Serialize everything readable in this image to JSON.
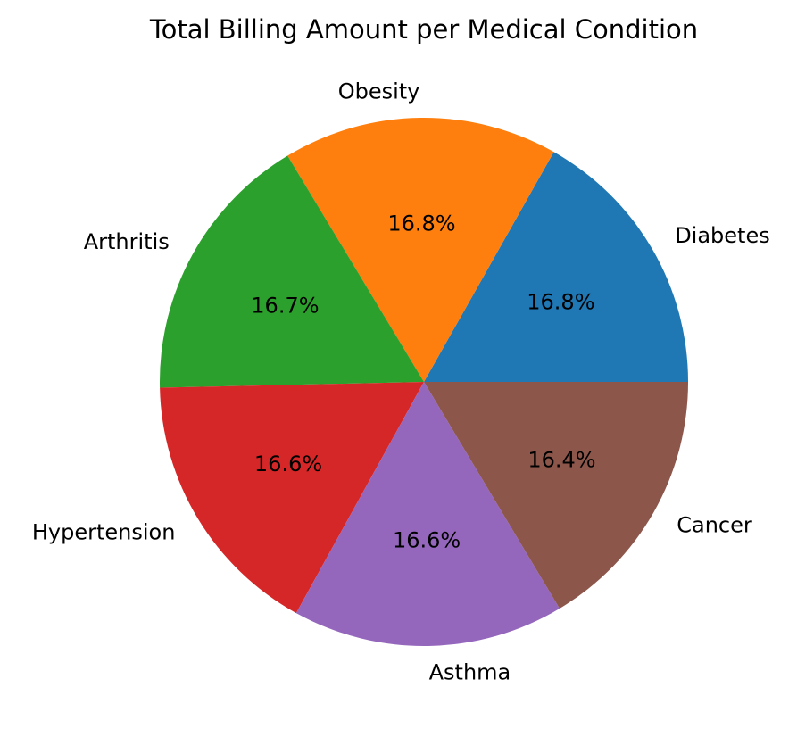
{
  "chart_data": {
    "type": "pie",
    "title": "Total Billing Amount per Medical Condition",
    "categories": [
      "Diabetes",
      "Obesity",
      "Arthritis",
      "Hypertension",
      "Asthma",
      "Cancer"
    ],
    "values": [
      16.8,
      16.8,
      16.7,
      16.6,
      16.6,
      16.4
    ],
    "value_labels": [
      "16.8%",
      "16.8%",
      "16.7%",
      "16.6%",
      "16.6%",
      "16.4%"
    ],
    "colors": [
      "#1f77b4",
      "#ff7f0e",
      "#2ca02c",
      "#d62728",
      "#9467bd",
      "#8c564b"
    ],
    "start_angle_deg": 0,
    "direction": "counterclockwise"
  }
}
